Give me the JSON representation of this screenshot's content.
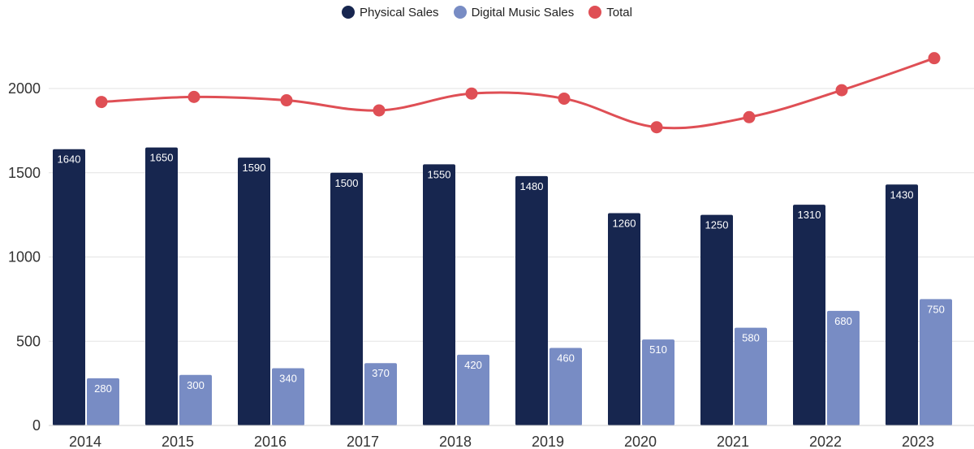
{
  "chart_data": {
    "type": "bar",
    "categories": [
      "2014",
      "2015",
      "2016",
      "2017",
      "2018",
      "2019",
      "2020",
      "2021",
      "2022",
      "2023"
    ],
    "series": [
      {
        "name": "Physical Sales",
        "type": "bar",
        "color": "#17264f",
        "values": [
          1640,
          1650,
          1590,
          1500,
          1550,
          1480,
          1260,
          1250,
          1310,
          1430
        ]
      },
      {
        "name": "Digital Music Sales",
        "type": "bar",
        "color": "#788cc4",
        "values": [
          280,
          300,
          340,
          370,
          420,
          460,
          510,
          580,
          680,
          750
        ]
      },
      {
        "name": "Total",
        "type": "line",
        "color": "#df4f55",
        "values": [
          1920,
          1950,
          1930,
          1870,
          1970,
          1940,
          1770,
          1830,
          1990,
          2180
        ]
      }
    ],
    "yticks": [
      0,
      500,
      1000,
      1500,
      2000
    ],
    "ylim": [
      0,
      2500
    ],
    "grid": true,
    "legend": "top-center",
    "data_labels": true
  }
}
